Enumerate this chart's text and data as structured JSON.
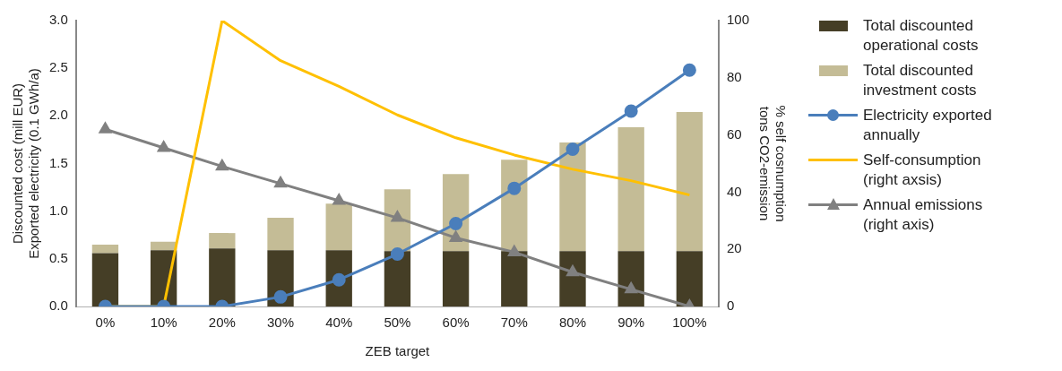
{
  "chart_data": {
    "type": "bar",
    "stacked": true,
    "xlabel": "ZEB target",
    "ylabel": "Discounted cost (mill EUR)\nExported electricity (0.1 GWh/a)",
    "y2label": "% self cosnumption\ntons CO2-emission",
    "categories": [
      "0%",
      "10%",
      "20%",
      "30%",
      "40%",
      "50%",
      "60%",
      "70%",
      "80%",
      "90%",
      "100%"
    ],
    "ylim": [
      0,
      3
    ],
    "yticks": [
      {
        "value": 0,
        "label": "0.0"
      },
      {
        "value": 0.5,
        "label": "0.5"
      },
      {
        "value": 1,
        "label": "1.0"
      },
      {
        "value": 1.5,
        "label": "1.5"
      },
      {
        "value": 2,
        "label": "2.0"
      },
      {
        "value": 2.5,
        "label": "2.5"
      },
      {
        "value": 3,
        "label": "3.0"
      }
    ],
    "y2lim": [
      0,
      100
    ],
    "y2ticks": [
      0,
      20,
      40,
      60,
      80,
      100
    ],
    "grid": false,
    "legend": "right",
    "series": [
      {
        "name": "Total discounted operational costs",
        "color": "#453e26",
        "values": [
          0.56,
          0.59,
          0.61,
          0.59,
          0.59,
          0.58,
          0.58,
          0.58,
          0.58,
          0.58,
          0.58
        ]
      },
      {
        "name": "Total discounted investment costs",
        "color": "#c4bc96",
        "values": [
          0.09,
          0.09,
          0.16,
          0.34,
          0.49,
          0.65,
          0.81,
          0.96,
          1.14,
          1.3,
          1.46
        ]
      },
      {
        "name": "Electricity exported annually",
        "type": "line",
        "color": "#4a7ebb",
        "marker": "circle",
        "values": [
          0,
          0,
          0,
          0.1,
          0.28,
          0.55,
          0.87,
          1.24,
          1.65,
          2.05,
          2.48
        ]
      },
      {
        "name": "Self-consumption (right axsis)",
        "type": "line",
        "axis": "y2",
        "color": "#ffc000",
        "marker": "none",
        "values": [
          0,
          0,
          100,
          86,
          77,
          67,
          59,
          53,
          48,
          44,
          39
        ]
      },
      {
        "name": "Annual emissions (right axis)",
        "type": "line",
        "axis": "y2",
        "color": "#808080",
        "marker": "triangle",
        "values": [
          62,
          55.5,
          49,
          43,
          37,
          31,
          24,
          19,
          12,
          6,
          0
        ]
      }
    ]
  }
}
